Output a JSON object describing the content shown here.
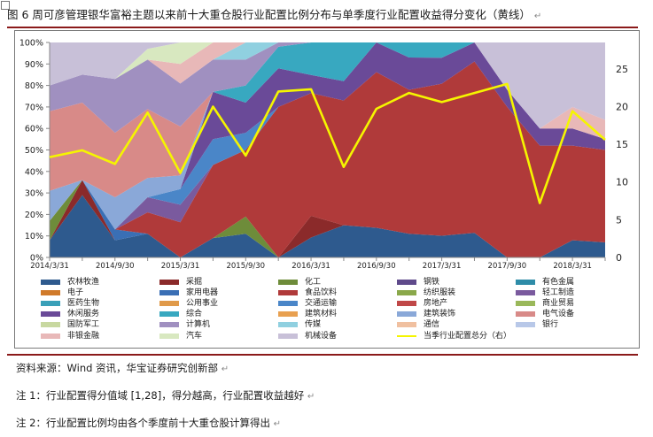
{
  "title": "图 6 周可彦管理银华富裕主题以来前十大重仓股行业配置比例分布与单季度行业配置收益得分变化（黄线）",
  "return_mark": "↵",
  "source": "资料来源：Wind 资讯，华宝证券研究创新部",
  "note1": "注 1：行业配置得分值域  [1,28]，得分越高，行业配置收益越好",
  "note2": "注 2：行业配置比例均由各个季度前十大重仓股计算得出",
  "chart_data": {
    "type": "area",
    "stacked": true,
    "x": [
      "2014/3/31",
      "2014/6/30",
      "2014/9/30",
      "2014/12/31",
      "2015/3/31",
      "2015/6/30",
      "2015/9/30",
      "2015/12/31",
      "2016/3/31",
      "2016/6/30",
      "2016/9/30",
      "2016/12/31",
      "2017/3/31",
      "2017/6/30",
      "2017/9/30",
      "2017/12/31",
      "2018/3/31",
      "2018/6/30"
    ],
    "x_tick_labels": [
      "2014/3/31",
      "2014/9/30",
      "2015/3/31",
      "2015/9/30",
      "2016/3/31",
      "2016/9/30",
      "2017/3/31",
      "2017/9/30",
      "2018/3/31"
    ],
    "y_left_ticks": [
      "0%",
      "10%",
      "20%",
      "30%",
      "40%",
      "50%",
      "60%",
      "70%",
      "80%",
      "90%",
      "100%"
    ],
    "y_left_range": [
      0,
      100
    ],
    "y_right_ticks": [
      "0",
      "5",
      "10",
      "15",
      "20",
      "25"
    ],
    "y_right_range": [
      0,
      28.5
    ],
    "grid": false,
    "legend_position": "bottom",
    "series": [
      {
        "name": "农林牧渔",
        "color": "#2e5a8e",
        "values": [
          8,
          29,
          8,
          11,
          0,
          9,
          11,
          0,
          11,
          15,
          12,
          11,
          10,
          9,
          0,
          0,
          8,
          7
        ]
      },
      {
        "name": "采掘",
        "color": "#8b2a2a",
        "values": [
          0,
          7,
          0,
          0,
          0,
          0,
          0,
          0,
          12,
          0,
          0,
          0,
          0,
          0,
          0,
          0,
          0,
          0
        ]
      },
      {
        "name": "化工",
        "color": "#6e8c3a",
        "values": [
          9,
          0,
          0,
          0,
          0,
          0,
          8,
          0,
          0,
          0,
          0,
          0,
          0,
          0,
          0,
          0,
          0,
          0
        ]
      },
      {
        "name": "钢铁",
        "color": "#5f4a8b",
        "values": [
          0,
          0,
          0,
          0,
          0,
          0,
          0,
          0,
          0,
          0,
          0,
          0,
          0,
          0,
          0,
          0,
          0,
          0
        ]
      },
      {
        "name": "有色金属",
        "color": "#2e8ca8",
        "values": [
          0,
          0,
          0,
          0,
          0,
          0,
          0,
          0,
          0,
          0,
          0,
          0,
          0,
          0,
          0,
          0,
          0,
          0
        ]
      },
      {
        "name": "电子",
        "color": "#d07a2a",
        "values": [
          0,
          0,
          0,
          0,
          0,
          0,
          0,
          0,
          0,
          0,
          0,
          0,
          0,
          0,
          0,
          0,
          0,
          0
        ]
      },
      {
        "name": "家用电器",
        "color": "#3a6fb5",
        "values": [
          0,
          0,
          5,
          0,
          0,
          0,
          0,
          0,
          0,
          0,
          0,
          0,
          0,
          0,
          0,
          0,
          0,
          0
        ]
      },
      {
        "name": "食品饮料",
        "color": "#b03a3a",
        "values": [
          0,
          0,
          0,
          10,
          18,
          34,
          31,
          70,
          68,
          58,
          63,
          67,
          70,
          63,
          70,
          52,
          44,
          43
        ]
      },
      {
        "name": "纺织服装",
        "color": "#8aa84a",
        "values": [
          0,
          0,
          0,
          0,
          0,
          0,
          0,
          0,
          0,
          0,
          0,
          0,
          0,
          0,
          0,
          0,
          0,
          0
        ]
      },
      {
        "name": "轻工制造",
        "color": "#7a5a9e",
        "values": [
          0,
          0,
          0,
          7,
          9,
          0,
          0,
          0,
          0,
          0,
          0,
          0,
          0,
          0,
          0,
          0,
          0,
          0
        ]
      },
      {
        "name": "医药生物",
        "color": "#3aa0b8",
        "values": [
          0,
          0,
          0,
          0,
          0,
          0,
          0,
          0,
          0,
          0,
          0,
          0,
          0,
          0,
          0,
          0,
          0,
          0
        ]
      },
      {
        "name": "公用事业",
        "color": "#e09a4a",
        "values": [
          0,
          0,
          0,
          0,
          0,
          0,
          0,
          0,
          0,
          0,
          0,
          0,
          0,
          0,
          0,
          0,
          0,
          0
        ]
      },
      {
        "name": "交通运输",
        "color": "#4a86c8",
        "values": [
          0,
          0,
          0,
          0,
          8,
          12,
          8,
          0,
          0,
          0,
          0,
          0,
          0,
          0,
          0,
          0,
          0,
          0
        ]
      },
      {
        "name": "房地产",
        "color": "#c04848",
        "values": [
          0,
          0,
          0,
          0,
          0,
          0,
          0,
          0,
          0,
          0,
          0,
          0,
          0,
          0,
          0,
          0,
          0,
          0
        ]
      },
      {
        "name": "商业贸易",
        "color": "#9ab85a",
        "values": [
          0,
          0,
          0,
          0,
          0,
          0,
          0,
          0,
          0,
          0,
          0,
          0,
          0,
          0,
          0,
          0,
          0,
          0
        ]
      },
      {
        "name": "休闲服务",
        "color": "#6a4a98",
        "values": [
          0,
          0,
          0,
          0,
          0,
          22,
          14,
          18,
          10,
          9,
          12,
          15,
          12,
          7,
          8,
          8,
          8,
          5
        ]
      },
      {
        "name": "综合",
        "color": "#38a8c0",
        "values": [
          0,
          0,
          0,
          0,
          0,
          0,
          8,
          10,
          18,
          18,
          0,
          7,
          7,
          0,
          0,
          0,
          0,
          0
        ]
      },
      {
        "name": "建筑材料",
        "color": "#e8a050",
        "values": [
          0,
          0,
          0,
          0,
          0,
          0,
          0,
          0,
          0,
          0,
          0,
          0,
          0,
          0,
          0,
          0,
          0,
          0
        ]
      },
      {
        "name": "建筑装饰",
        "color": "#8aa8d8",
        "values": [
          14,
          0,
          15,
          9,
          7,
          0,
          0,
          0,
          0,
          0,
          0,
          0,
          0,
          0,
          0,
          0,
          0,
          0
        ]
      },
      {
        "name": "电气设备",
        "color": "#d88a88",
        "values": [
          37,
          36,
          30,
          32,
          25,
          0,
          0,
          0,
          0,
          0,
          0,
          0,
          0,
          0,
          0,
          0,
          0,
          0
        ]
      },
      {
        "name": "国防军工",
        "color": "#c8d8a0",
        "values": [
          0,
          0,
          0,
          0,
          0,
          0,
          0,
          0,
          0,
          0,
          0,
          0,
          0,
          0,
          0,
          0,
          0,
          0
        ]
      },
      {
        "name": "计算机",
        "color": "#a090c0",
        "values": [
          12,
          13,
          25,
          23,
          22,
          15,
          12,
          2,
          0,
          0,
          0,
          0,
          0,
          0,
          0,
          0,
          0,
          0
        ]
      },
      {
        "name": "传媒",
        "color": "#90d0e0",
        "values": [
          0,
          0,
          0,
          0,
          0,
          0,
          8,
          0,
          0,
          0,
          0,
          0,
          0,
          0,
          0,
          0,
          0,
          0
        ]
      },
      {
        "name": "通信",
        "color": "#f0c0a0",
        "values": [
          0,
          0,
          0,
          0,
          0,
          0,
          0,
          0,
          0,
          0,
          0,
          0,
          0,
          0,
          0,
          0,
          0,
          0
        ]
      },
      {
        "name": "银行",
        "color": "#b8c8e8",
        "values": [
          0,
          0,
          0,
          0,
          0,
          0,
          0,
          0,
          0,
          0,
          0,
          0,
          0,
          0,
          0,
          0,
          0,
          0
        ]
      },
      {
        "name": "非银金融",
        "color": "#e8b8b8",
        "values": [
          0,
          0,
          0,
          0,
          10,
          8,
          0,
          0,
          0,
          0,
          0,
          0,
          0,
          0,
          0,
          0,
          10,
          9
        ]
      },
      {
        "name": "汽车",
        "color": "#d8e8c0",
        "values": [
          0,
          0,
          0,
          5,
          11,
          0,
          0,
          0,
          0,
          0,
          0,
          0,
          0,
          0,
          0,
          0,
          0,
          0
        ]
      },
      {
        "name": "机械设备",
        "color": "#c8c0d8",
        "values": [
          20,
          15,
          17,
          3,
          0,
          0,
          0,
          0,
          0,
          0,
          0,
          0,
          0,
          0,
          22,
          40,
          30,
          36
        ]
      }
    ],
    "line_series": {
      "name": "当季行业配置总分（右）",
      "color": "#f5f500",
      "axis": "right",
      "values": [
        13.3,
        14.2,
        12.4,
        19.2,
        11.2,
        20.0,
        13.5,
        22.0,
        22.3,
        12.0,
        19.7,
        21.8,
        20.6,
        21.8,
        23.0,
        7.2,
        19.4,
        15.6
      ]
    }
  }
}
